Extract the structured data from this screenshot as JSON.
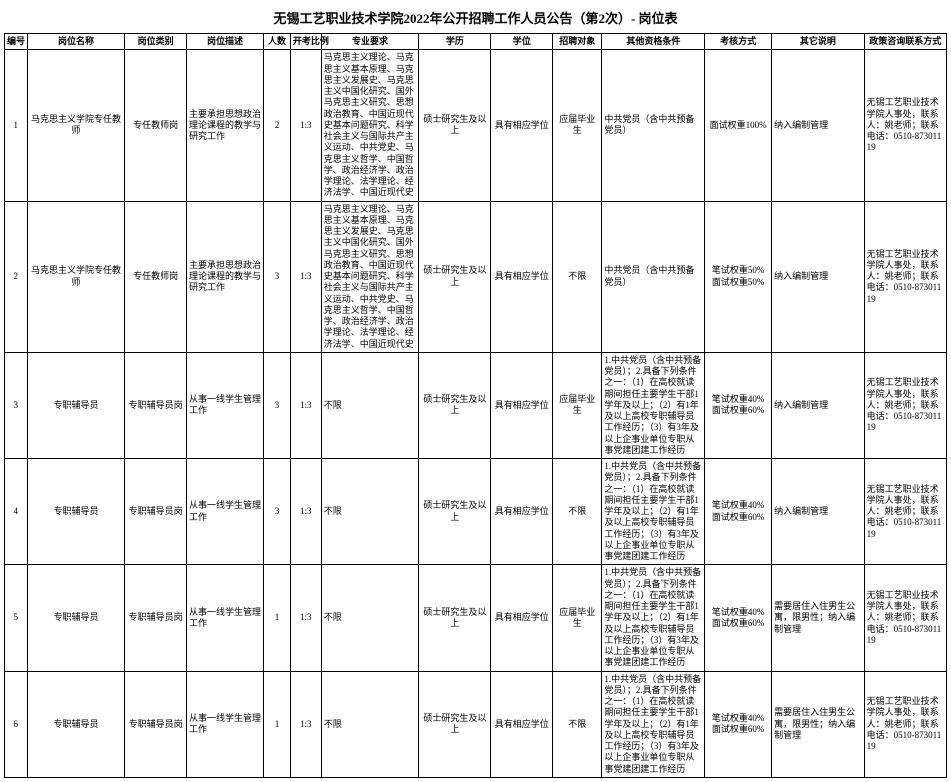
{
  "title": "无锡工艺职业技术学院2022年公开招聘工作人员公告（第2次）- 岗位表",
  "headers": [
    "编号",
    "岗位名称",
    "岗位类别",
    "岗位描述",
    "人数",
    "开考比例",
    "专业要求",
    "学历",
    "学位",
    "招聘对象",
    "其他资格条件",
    "考核方式",
    "其它说明",
    "政策咨询联系方式"
  ],
  "rows": [
    {
      "c1": "1",
      "c2": "马克思主义学院专任教师",
      "c3": "专任教师岗",
      "c4": "主要承担思想政治理论课程的教学与研究工作",
      "c5": "2",
      "c6": "1:3",
      "c7": "马克思主义理论、马克思主义基本原理、马克思主义发展史、马克思主义中国化研究、国外马克思主义研究、思想政治教育、中国近现代史基本问题研究、科学社会主义与国际共产主义运动、中共党史、马克思主义哲学、中国哲学、政治经济学、政治学理论、法学理论、经济法学、中国近现代史",
      "c8": "硕士研究生及以上",
      "c9": "具有相应学位",
      "c10": "应届毕业生",
      "c11": "中共党员（含中共预备党员）",
      "c12": "面试权重100%",
      "c13": "纳入编制管理",
      "c14": "无锡工艺职业技术学院人事处，联系人：姚老师；联系电话：0510-87301119"
    },
    {
      "c1": "2",
      "c2": "马克思主义学院专任教师",
      "c3": "专任教师岗",
      "c4": "主要承担思想政治理论课程的教学与研究工作",
      "c5": "3",
      "c6": "1:3",
      "c7": "马克思主义理论、马克思主义基本原理、马克思主义发展史、马克思主义中国化研究、国外马克思主义研究、思想政治教育、中国近现代史基本问题研究、科学社会主义与国际共产主义运动、中共党史、马克思主义哲学、中国哲学、政治经济学、政治学理论、法学理论、经济法学、中国近现代史",
      "c8": "硕士研究生及以上",
      "c9": "具有相应学位",
      "c10": "不限",
      "c11": "中共党员（含中共预备党员）",
      "c12": "笔试权重50% 面试权重50%",
      "c13": "纳入编制管理",
      "c14": "无锡工艺职业技术学院人事处，联系人：姚老师；联系电话：0510-87301119"
    },
    {
      "c1": "3",
      "c2": "专职辅导员",
      "c3": "专职辅导员岗",
      "c4": "从事一线学生管理工作",
      "c5": "3",
      "c6": "1:3",
      "c7": "不限",
      "c8": "硕士研究生及以上",
      "c9": "具有相应学位",
      "c10": "应届毕业生",
      "c11": "1.中共党员（含中共预备党员）；2.具备下列条件之一：（1）在高校就读期间担任主要学生干部1学年及以上；（2）有1年及以上高校专职辅导员工作经历；（3）有3年及以上企事业单位专职从事党建团建工作经历",
      "c12": "笔试权重40% 面试权重60%",
      "c13": "纳入编制管理",
      "c14": "无锡工艺职业技术学院人事处，联系人：姚老师；联系电话：0510-87301119"
    },
    {
      "c1": "4",
      "c2": "专职辅导员",
      "c3": "专职辅导员岗",
      "c4": "从事一线学生管理工作",
      "c5": "3",
      "c6": "1:3",
      "c7": "不限",
      "c8": "硕士研究生及以上",
      "c9": "具有相应学位",
      "c10": "不限",
      "c11": "1.中共党员（含中共预备党员）；2.具备下列条件之一：（1）在高校就读期间担任主要学生干部1学年及以上；（2）有1年及以上高校专职辅导员工作经历；（3）有3年及以上企事业单位专职从事党建团建工作经历",
      "c12": "笔试权重40% 面试权重60%",
      "c13": "纳入编制管理",
      "c14": "无锡工艺职业技术学院人事处，联系人：姚老师；联系电话：0510-87301119"
    },
    {
      "c1": "5",
      "c2": "专职辅导员",
      "c3": "专职辅导员岗",
      "c4": "从事一线学生管理工作",
      "c5": "1",
      "c6": "1:3",
      "c7": "不限",
      "c8": "硕士研究生及以上",
      "c9": "具有相应学位",
      "c10": "应届毕业生",
      "c11": "1.中共党员（含中共预备党员）；2.具备下列条件之一：（1）在高校就读期间担任主要学生干部1学年及以上；（2）有1年及以上高校专职辅导员工作经历；（3）有3年及以上企事业单位专职从事党建团建工作经历",
      "c12": "笔试权重40% 面试权重60%",
      "c13": "需要居住入住男生公寓，限男性；纳入编制管理",
      "c14": "无锡工艺职业技术学院人事处，联系人：姚老师；联系电话：0510-87301119"
    },
    {
      "c1": "6",
      "c2": "专职辅导员",
      "c3": "专职辅导员岗",
      "c4": "从事一线学生管理工作",
      "c5": "1",
      "c6": "1:3",
      "c7": "不限",
      "c8": "硕士研究生及以上",
      "c9": "具有相应学位",
      "c10": "不限",
      "c11": "1.中共党员（含中共预备党员）；2.具备下列条件之一：（1）在高校就读期间担任主要学生干部1学年及以上；（2）有1年及以上高校专职辅导员工作经历；（3）有3年及以上企事业单位专职从事党建团建工作经历",
      "c12": "笔试权重40% 面试权重60%",
      "c13": "需要居住入住男生公寓，限男性；纳入编制管理",
      "c14": "无锡工艺职业技术学院人事处，联系人：姚老师；联系电话：0510-87301119"
    }
  ]
}
